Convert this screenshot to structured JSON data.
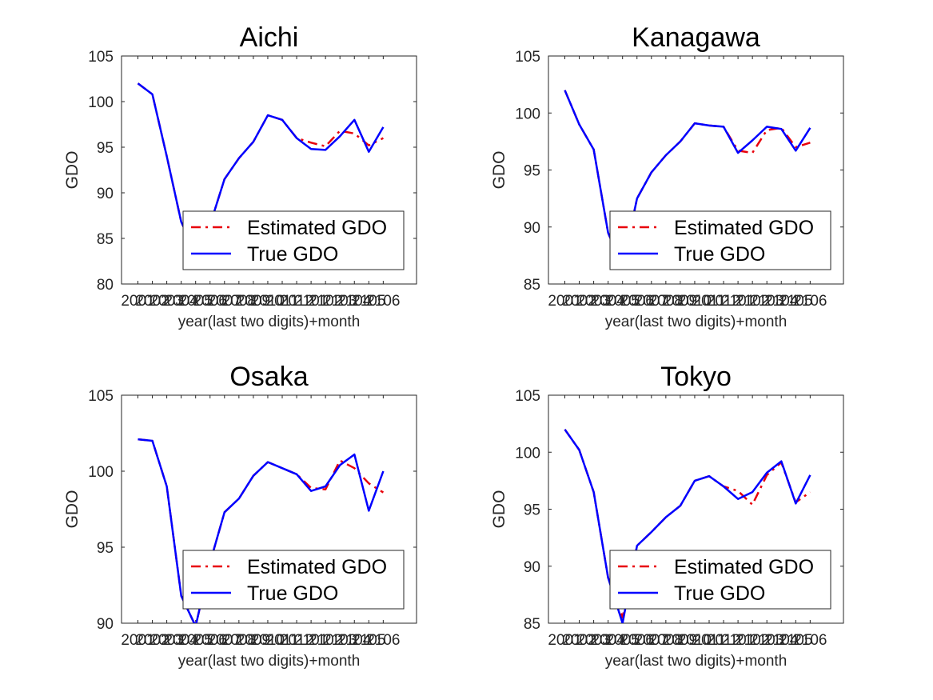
{
  "figure": {
    "xlabel": "year(last two digits)+month",
    "ylabel": "GDO",
    "legend": {
      "estimated": "Estimated GDO",
      "true": "True GDO"
    },
    "colors": {
      "estimated": "#e8000b",
      "true": "#0000ff"
    }
  },
  "chart_data": [
    {
      "type": "line",
      "title": "Aichi",
      "xlabel": "year(last two digits)+month",
      "ylabel": "GDO",
      "ylim": [
        80,
        105
      ],
      "yticks": [
        80,
        85,
        90,
        95,
        100,
        105
      ],
      "xticks": [
        "2001",
        "2002",
        "2003",
        "2004",
        "2005",
        "2006",
        "2007",
        "2008",
        "2009",
        "2010",
        "2011",
        "2012",
        "2101",
        "2102",
        "2103",
        "2104",
        "2105",
        "2106"
      ],
      "legend_position": "bottom-right",
      "series": [
        {
          "name": "Estimated GDO",
          "style": "dashdot",
          "color": "#e8000b",
          "values": [
            102.0,
            100.8,
            94.0,
            86.8,
            83.5,
            86.5,
            91.5,
            93.8,
            95.6,
            98.5,
            98.0,
            96.0,
            95.5,
            95.1,
            96.8,
            96.5,
            95.2,
            96.0
          ]
        },
        {
          "name": "True GDO",
          "style": "solid",
          "color": "#0000ff",
          "values": [
            102.0,
            100.8,
            94.0,
            86.8,
            83.5,
            86.5,
            91.5,
            93.8,
            95.6,
            98.5,
            98.0,
            96.0,
            94.8,
            94.7,
            96.2,
            98.0,
            94.5,
            97.2
          ]
        }
      ]
    },
    {
      "type": "line",
      "title": "Kanagawa",
      "xlabel": "year(last two digits)+month",
      "ylabel": "GDO",
      "ylim": [
        85,
        105
      ],
      "yticks": [
        85,
        90,
        95,
        100,
        105
      ],
      "xticks": [
        "2001",
        "2002",
        "2003",
        "2004",
        "2005",
        "2006",
        "2007",
        "2008",
        "2009",
        "2010",
        "2011",
        "2012",
        "2101",
        "2102",
        "2103",
        "2104",
        "2105",
        "2106"
      ],
      "legend_position": "bottom-right",
      "series": [
        {
          "name": "Estimated GDO",
          "style": "dashdot",
          "color": "#e8000b",
          "values": [
            102.0,
            99.0,
            96.8,
            89.5,
            86.5,
            92.5,
            94.8,
            96.3,
            97.5,
            99.1,
            98.9,
            98.8,
            96.7,
            96.5,
            98.5,
            98.7,
            97.0,
            97.4
          ]
        },
        {
          "name": "True GDO",
          "style": "solid",
          "color": "#0000ff",
          "values": [
            102.0,
            99.0,
            96.8,
            89.5,
            86.5,
            92.5,
            94.8,
            96.3,
            97.5,
            99.1,
            98.9,
            98.8,
            96.5,
            97.6,
            98.8,
            98.6,
            96.7,
            98.7
          ]
        }
      ]
    },
    {
      "type": "line",
      "title": "Osaka",
      "xlabel": "year(last two digits)+month",
      "ylabel": "GDO",
      "ylim": [
        90,
        105
      ],
      "yticks": [
        90,
        95,
        100,
        105
      ],
      "xticks": [
        "2001",
        "2002",
        "2003",
        "2004",
        "2005",
        "2006",
        "2007",
        "2008",
        "2009",
        "2010",
        "2011",
        "2012",
        "2101",
        "2102",
        "2103",
        "2104",
        "2105",
        "2106"
      ],
      "legend_position": "bottom-right",
      "series": [
        {
          "name": "Estimated GDO",
          "style": "dashdot",
          "color": "#e8000b",
          "values": [
            102.1,
            102.0,
            99.0,
            91.8,
            89.8,
            94.0,
            97.3,
            98.2,
            99.7,
            100.6,
            100.2,
            99.8,
            98.9,
            98.8,
            100.7,
            100.2,
            99.2,
            98.6
          ]
        },
        {
          "name": "True GDO",
          "style": "solid",
          "color": "#0000ff",
          "values": [
            102.1,
            102.0,
            99.0,
            91.8,
            89.8,
            94.0,
            97.3,
            98.2,
            99.7,
            100.6,
            100.2,
            99.8,
            98.7,
            99.0,
            100.4,
            101.1,
            97.4,
            100.0
          ]
        }
      ]
    },
    {
      "type": "line",
      "title": "Tokyo",
      "xlabel": "year(last two digits)+month",
      "ylabel": "GDO",
      "ylim": [
        85,
        105
      ],
      "yticks": [
        85,
        90,
        95,
        100,
        105
      ],
      "xticks": [
        "2001",
        "2002",
        "2003",
        "2004",
        "2005",
        "2006",
        "2007",
        "2008",
        "2009",
        "2010",
        "2011",
        "2012",
        "2101",
        "2102",
        "2103",
        "2104",
        "2105",
        "2106"
      ],
      "legend_position": "bottom-right",
      "series": [
        {
          "name": "Estimated GDO",
          "style": "dashdot",
          "color": "#e8000b",
          "values": [
            102.0,
            100.2,
            96.5,
            89.0,
            85.5,
            91.8,
            93.0,
            94.3,
            95.3,
            97.5,
            97.9,
            97.0,
            96.6,
            95.4,
            98.0,
            99.1,
            95.6,
            96.5
          ]
        },
        {
          "name": "True GDO",
          "style": "solid",
          "color": "#0000ff",
          "values": [
            102.0,
            100.2,
            96.5,
            89.0,
            85.0,
            91.8,
            93.0,
            94.3,
            95.3,
            97.5,
            97.9,
            97.0,
            95.9,
            96.5,
            98.2,
            99.2,
            95.5,
            98.0
          ]
        }
      ]
    }
  ]
}
